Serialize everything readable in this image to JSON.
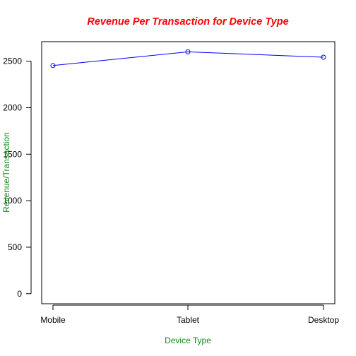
{
  "chart_data": {
    "type": "line",
    "title": "Revenue Per Transaction for Device Type",
    "xlabel": "Device Type",
    "ylabel": "Revenue/Transaction",
    "categories": [
      "Mobile",
      "Tablet",
      "Desktop"
    ],
    "series": [
      {
        "name": "Revenue/Transaction",
        "values": [
          2453,
          2601,
          2543
        ],
        "color": "#0000ff"
      }
    ],
    "ylim": [
      -108,
      2710
    ],
    "yticks": [
      0,
      500,
      1000,
      1500,
      2000,
      2500
    ],
    "ytick_labels": [
      "0",
      "500",
      "1000",
      "1500",
      "2000",
      "2500"
    ],
    "grid": false,
    "title_color": "#ff0000",
    "axis_label_color": "#138a13"
  }
}
